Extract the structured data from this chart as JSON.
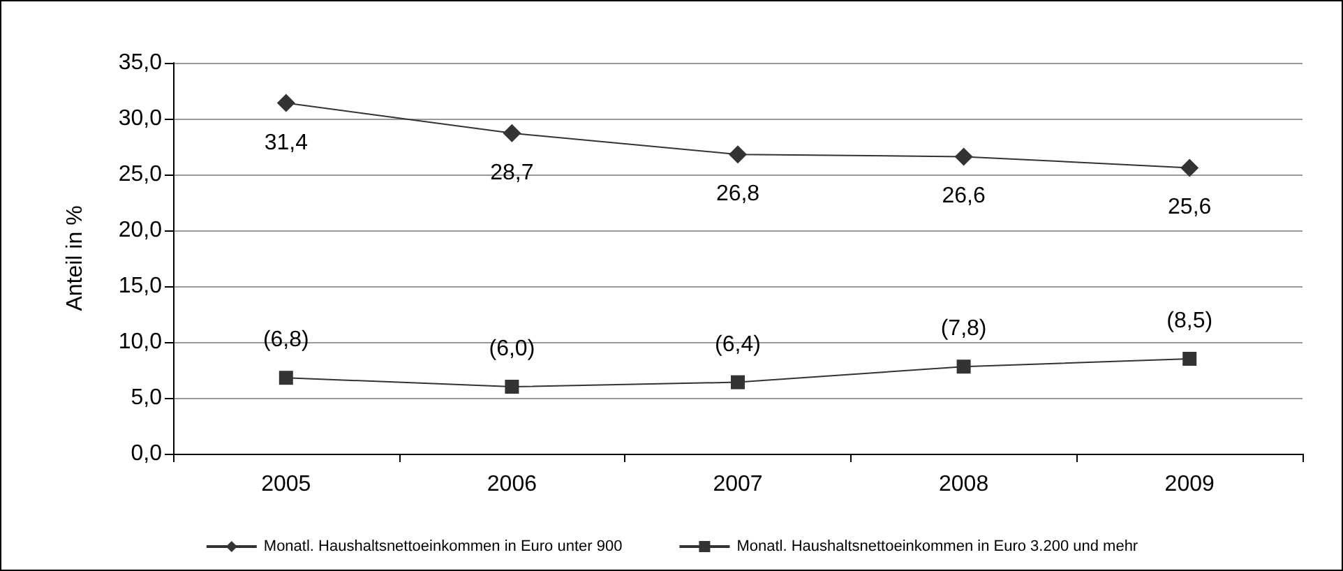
{
  "chart_data": {
    "type": "line",
    "ylabel": "Anteil in %",
    "categories": [
      "2005",
      "2006",
      "2007",
      "2008",
      "2009"
    ],
    "series": [
      {
        "name": "Monatl. Haushaltsnettoeinkommen in Euro unter 900",
        "color": "#333333",
        "marker": "diamond",
        "values": [
          31.4,
          28.7,
          26.8,
          26.6,
          25.6
        ],
        "value_labels": [
          "31,4",
          "28,7",
          "26,8",
          "26,6",
          "25,6"
        ]
      },
      {
        "name": "Monatl. Haushaltsnettoeinkommen in Euro 3.200 und mehr",
        "color": "#333333",
        "marker": "square",
        "values": [
          6.8,
          6.0,
          6.4,
          7.8,
          8.5
        ],
        "value_labels": [
          "(6,8)",
          "(6,0)",
          "(6,4)",
          "(7,8)",
          "(8,5)"
        ]
      }
    ],
    "ylim": [
      0,
      35
    ],
    "yticks": [
      {
        "value": 0,
        "label": "0,0"
      },
      {
        "value": 5,
        "label": "5,0"
      },
      {
        "value": 10,
        "label": "10,0"
      },
      {
        "value": 15,
        "label": "15,0"
      },
      {
        "value": 20,
        "label": "20,0"
      },
      {
        "value": 25,
        "label": "25,0"
      },
      {
        "value": 30,
        "label": "30,0"
      },
      {
        "value": 35,
        "label": "35,0"
      }
    ],
    "grid": "y",
    "legend": "bottom",
    "line_style": "solid"
  }
}
